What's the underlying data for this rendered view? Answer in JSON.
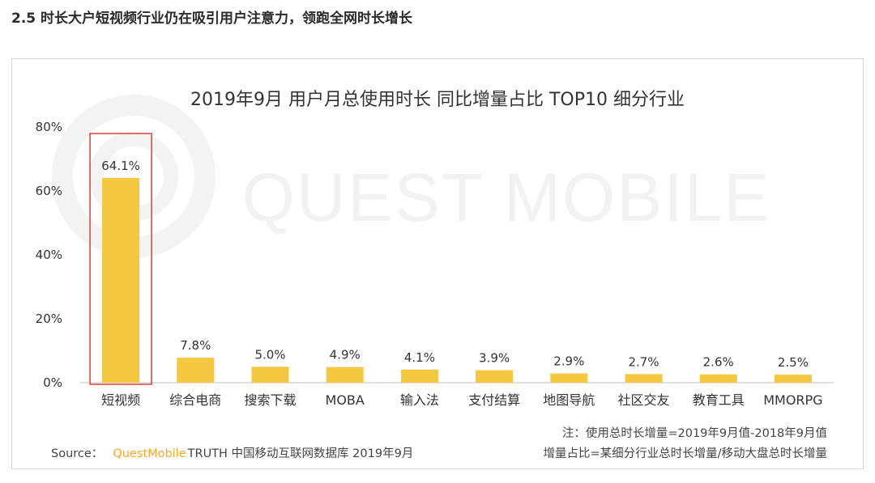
{
  "page": {
    "heading": "2.5 时长大户短视频行业仍在吸引用户注意力，领跑全网时长增长"
  },
  "watermark": {
    "text": "QUEST MOBILE"
  },
  "footer": {
    "note1": "注：使用总时长增量=2019年9月值-2018年9月值",
    "source_label": "Source：",
    "source_brand": "QuestMobile",
    "source_rest": "TRUTH 中国移动互联网数据库 2019年9月",
    "note2": "增量占比=某细分行业总时长增量/移动大盘总时长增量"
  },
  "colors": {
    "bar": "#f5c842",
    "highlight_box": "#e03c3c",
    "axis": "#bfbfbf",
    "watermark": "#f2f2f2",
    "brand": "#f5a623"
  },
  "chart_data": {
    "type": "bar",
    "title": "2019年9月 用户月总使用时长 同比增量占比 TOP10 细分行业",
    "categories": [
      "短视频",
      "综合电商",
      "搜索下载",
      "MOBA",
      "输入法",
      "支付结算",
      "地图导航",
      "社区交友",
      "教育工具",
      "MMORPG"
    ],
    "values": [
      64.1,
      7.8,
      5.0,
      4.9,
      4.1,
      3.9,
      2.9,
      2.7,
      2.6,
      2.5
    ],
    "value_labels": [
      "64.1%",
      "7.8%",
      "5.0%",
      "4.9%",
      "4.1%",
      "3.9%",
      "2.9%",
      "2.7%",
      "2.6%",
      "2.5%"
    ],
    "y_ticks": [
      "0%",
      "20%",
      "40%",
      "60%",
      "80%"
    ],
    "ylim": [
      0,
      80
    ],
    "highlight_category": "短视频",
    "grid": false,
    "xlabel": "",
    "ylabel": ""
  }
}
